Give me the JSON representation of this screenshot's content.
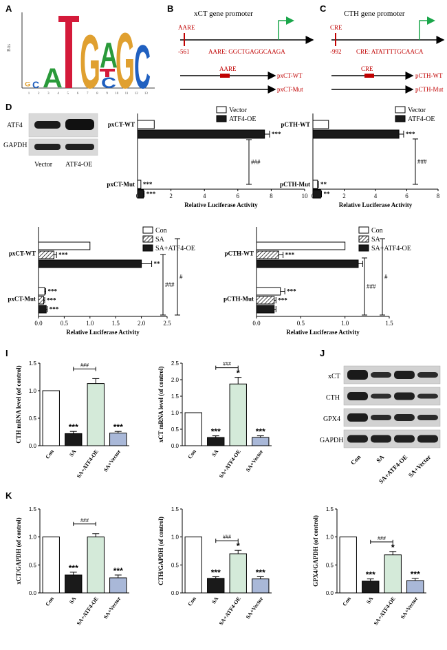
{
  "colors": {
    "green": "#d4ead9",
    "blue": "#a9b8d8",
    "dark": "#1a1a1a",
    "red": "#c00000",
    "arrow_green": "#1aa64a"
  },
  "panels": {
    "A": {
      "label": "A",
      "ylabel": "Bits",
      "positions": [
        "1",
        "2",
        "3",
        "4",
        "5",
        "6",
        "7",
        "8",
        "9",
        "10",
        "11",
        "12",
        "13"
      ]
    },
    "B": {
      "label": "B",
      "title": "xCT gene promoter",
      "site": "AARE",
      "pos": "-561",
      "seq": "AARE: GGCTGAGGCAAGA",
      "wt_site": "AARE",
      "wt": "pxCT-WT",
      "mut": "pxCT-Mut"
    },
    "C": {
      "label": "C",
      "title": "CTH gene promoter",
      "site": "CRE",
      "pos": "-992",
      "seq": "CRE: ATATTTTGCAACA",
      "wt_site": "CRE",
      "wt": "pCTH-WT",
      "mut": "pCTH-Mut"
    },
    "D": {
      "label": "D",
      "rows": [
        "ATF4",
        "GAPDH"
      ],
      "cols": [
        "Vector",
        "ATF4-OE"
      ]
    },
    "J": {
      "label": "J",
      "rows": [
        "xCT",
        "CTH",
        "GPX4",
        "GAPDH"
      ],
      "cols": [
        "Con",
        "SA",
        "SA+ATF4-OE",
        "SA+Vector"
      ]
    },
    "I": {
      "label": "I"
    },
    "K": {
      "label": "K"
    }
  },
  "chart_data": [
    {
      "id": "E",
      "type": "bar",
      "orientation": "horizontal",
      "categories": [
        "pxCT-WT",
        "pxCT-Mut"
      ],
      "series": [
        {
          "name": "Vector",
          "values": [
            1.0,
            0.2
          ]
        },
        {
          "name": "ATF4-OE",
          "values": [
            7.6,
            0.35
          ]
        }
      ],
      "errors": [
        [
          0,
          0
        ],
        [
          0.3,
          0.05
        ]
      ],
      "sig": [
        [
          "",
          "***"
        ],
        [
          "***",
          "***"
        ]
      ],
      "bracket": "###",
      "xlabel": "Relative Luciferase Activity",
      "xlim": [
        0,
        10
      ],
      "xticks": [
        "0",
        "2",
        "4",
        "6",
        "8",
        "10"
      ],
      "legend": "top-right"
    },
    {
      "id": "F",
      "type": "bar",
      "orientation": "horizontal",
      "categories": [
        "pCTH-WT",
        "pCTH-Mut"
      ],
      "series": [
        {
          "name": "Vector",
          "values": [
            1.0,
            0.3
          ]
        },
        {
          "name": "ATF4-OE",
          "values": [
            5.5,
            0.5
          ]
        }
      ],
      "errors": [
        [
          0,
          0.05
        ],
        [
          0.3,
          0.05
        ]
      ],
      "sig": [
        [
          "",
          "**"
        ],
        [
          "***",
          "**"
        ]
      ],
      "bracket": "###",
      "xlabel": "Relative Luciferase Activity",
      "xlim": [
        0,
        8
      ],
      "xticks": [
        "0",
        "2",
        "4",
        "6",
        "8"
      ],
      "legend": "top-right"
    },
    {
      "id": "G",
      "type": "bar",
      "orientation": "horizontal",
      "categories": [
        "pxCT-WT",
        "pxCT-Mut"
      ],
      "series": [
        {
          "name": "Con",
          "values": [
            1.0,
            0.12
          ]
        },
        {
          "name": "SA",
          "values": [
            0.3,
            0.1
          ]
        },
        {
          "name": "SA+ATF4-OE",
          "values": [
            2.0,
            0.15
          ]
        }
      ],
      "errors": [
        [
          0,
          0.02
        ],
        [
          0.05,
          0.02
        ],
        [
          0.2,
          0.02
        ]
      ],
      "sig": [
        [
          "",
          "***"
        ],
        [
          "***",
          "***"
        ],
        [
          "**",
          "***"
        ]
      ],
      "brackets": [
        "###",
        "#"
      ],
      "xlabel": "Relative Luciferase Activity",
      "xlim": [
        0,
        2.5
      ],
      "xticks": [
        "0.0",
        "0.5",
        "1.0",
        "1.5",
        "2.0",
        "2.5"
      ],
      "legend": "top-right"
    },
    {
      "id": "H",
      "type": "bar",
      "orientation": "horizontal",
      "categories": [
        "pCTH-WT",
        "pCTH-Mut"
      ],
      "series": [
        {
          "name": "Con",
          "values": [
            1.0,
            0.27
          ]
        },
        {
          "name": "SA",
          "values": [
            0.25,
            0.2
          ]
        },
        {
          "name": "SA+ATF4-OE",
          "values": [
            1.15,
            0.2
          ]
        }
      ],
      "errors": [
        [
          0,
          0.05
        ],
        [
          0.05,
          0.02
        ],
        [
          0.05,
          0.02
        ]
      ],
      "sig": [
        [
          "",
          "***"
        ],
        [
          "***",
          "***"
        ],
        [
          "",
          ""
        ]
      ],
      "brackets": [
        "###",
        "#"
      ],
      "xlabel": "Relative Luciferase Activity",
      "xlim": [
        0,
        1.5
      ],
      "xticks": [
        "0.0",
        "0.5",
        "1.0",
        "1.5"
      ],
      "legend": "top-right"
    },
    {
      "id": "I1",
      "type": "bar",
      "categories": [
        "Con",
        "SA",
        "SA+ATF4-OE",
        "SA+Vector"
      ],
      "values": [
        1.0,
        0.22,
        1.13,
        0.23
      ],
      "errors": [
        0,
        0.04,
        0.09,
        0.03
      ],
      "sig": [
        "",
        "***",
        "",
        "***"
      ],
      "bracket": "###",
      "ylabel": "CTH mRNA level (of control)",
      "ylim": [
        0,
        1.5
      ],
      "yticks": [
        "0.0",
        "0.5",
        "1.0",
        "1.5"
      ]
    },
    {
      "id": "I2",
      "type": "bar",
      "categories": [
        "Con",
        "SA",
        "SA+ATF4-OE",
        "SA+Vector"
      ],
      "values": [
        1.0,
        0.25,
        1.87,
        0.25
      ],
      "errors": [
        0,
        0.05,
        0.2,
        0.05
      ],
      "sig": [
        "",
        "***",
        "*",
        "***"
      ],
      "bracket": "###",
      "ylabel": "xCT mRNA level (of control)",
      "ylim": [
        0,
        2.5
      ],
      "yticks": [
        "0.0",
        "0.5",
        "1.0",
        "1.5",
        "2.0",
        "2.5"
      ]
    },
    {
      "id": "K1",
      "type": "bar",
      "categories": [
        "Con",
        "SA",
        "SA+ATF4-OE",
        "SA+Vector"
      ],
      "values": [
        1.0,
        0.32,
        1.0,
        0.27
      ],
      "errors": [
        0,
        0.05,
        0.06,
        0.05
      ],
      "sig": [
        "",
        "***",
        "",
        "***"
      ],
      "bracket": "###",
      "ylabel": "xCT/GAPDH (of control)",
      "ylim": [
        0,
        1.5
      ],
      "yticks": [
        "0.0",
        "0.5",
        "1.0",
        "1.5"
      ]
    },
    {
      "id": "K2",
      "type": "bar",
      "categories": [
        "Con",
        "SA",
        "SA+ATF4-OE",
        "SA+Vector"
      ],
      "values": [
        1.0,
        0.26,
        0.7,
        0.25
      ],
      "errors": [
        0,
        0.03,
        0.06,
        0.04
      ],
      "sig": [
        "",
        "***",
        "*",
        "***"
      ],
      "bracket": "###",
      "ylabel": "CTH/GAPDH (of control)",
      "ylim": [
        0,
        1.5
      ],
      "yticks": [
        "0.0",
        "0.5",
        "1.0",
        "1.5"
      ]
    },
    {
      "id": "K3",
      "type": "bar",
      "categories": [
        "Con",
        "SA",
        "SA+ATF4-OE",
        "SA+Vector"
      ],
      "values": [
        1.0,
        0.21,
        0.68,
        0.22
      ],
      "errors": [
        0,
        0.04,
        0.06,
        0.04
      ],
      "sig": [
        "",
        "***",
        "*",
        "***"
      ],
      "bracket": "###",
      "ylabel": "GPX4/GAPDH (of control)",
      "ylim": [
        0,
        1.5
      ],
      "yticks": [
        "0.0",
        "0.5",
        "1.0",
        "1.5"
      ]
    }
  ]
}
